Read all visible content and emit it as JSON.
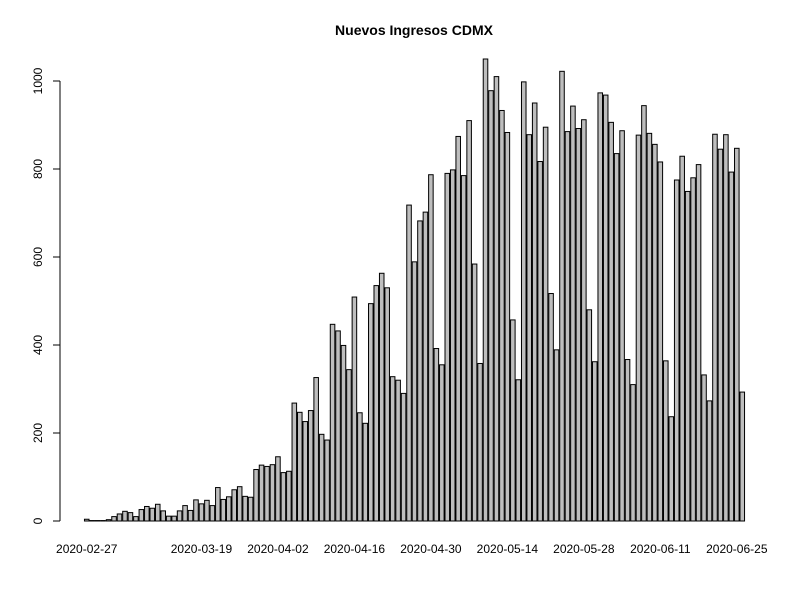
{
  "chart_data": {
    "type": "bar",
    "title": "Nuevos Ingresos CDMX",
    "xlabel": "",
    "ylabel": "",
    "ylim": [
      0,
      1080
    ],
    "yticks": [
      0,
      200,
      400,
      600,
      800,
      1000
    ],
    "x_tick_labels": [
      "2020-02-27",
      "2020-03-19",
      "2020-04-02",
      "2020-04-16",
      "2020-04-30",
      "2020-05-14",
      "2020-05-28",
      "2020-06-11",
      "2020-06-25"
    ],
    "bar_fill": "#bebebe",
    "bar_stroke": "#000000",
    "grid": false,
    "legend": "none",
    "values": [
      4,
      1,
      1,
      1,
      3,
      10,
      16,
      22,
      19,
      10,
      26,
      33,
      29,
      38,
      23,
      11,
      11,
      23,
      35,
      24,
      48,
      39,
      47,
      35,
      76,
      49,
      55,
      71,
      78,
      56,
      54,
      117,
      127,
      124,
      128,
      146,
      110,
      113,
      268,
      247,
      226,
      251,
      326,
      197,
      184,
      447,
      432,
      399,
      344,
      509,
      246,
      222,
      494,
      535,
      563,
      530,
      328,
      320,
      290,
      718,
      589,
      682,
      702,
      787,
      392,
      355,
      790,
      798,
      874,
      785,
      910,
      584,
      358,
      1050,
      978,
      1010,
      933,
      883,
      457,
      321,
      998,
      878,
      950,
      817,
      895,
      517,
      389,
      1022,
      885,
      943,
      892,
      912,
      480,
      362,
      973,
      968,
      906,
      835,
      887,
      367,
      310,
      877,
      944,
      881,
      856,
      816,
      364,
      237,
      775,
      829,
      749,
      780,
      810,
      332,
      273,
      879,
      845,
      878,
      793,
      847,
      293
    ]
  }
}
